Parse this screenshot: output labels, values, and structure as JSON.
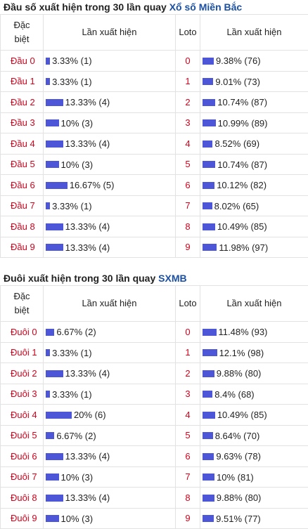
{
  "dau": {
    "title": "Đầu số xuất hiện trong 30 lần quay",
    "title_link": "Xổ số Miền Bắc",
    "headers": [
      "Đặc biệt",
      "Lần xuất hiện",
      "Loto",
      "Lần xuất hiện"
    ],
    "rows": [
      {
        "label": "Đầu 0",
        "db_text": "3.33% (1)",
        "db_pct": 3.33,
        "loto": "0",
        "loto_text": "9.38% (76)",
        "loto_pct": 9.38
      },
      {
        "label": "Đầu 1",
        "db_text": "3.33% (1)",
        "db_pct": 3.33,
        "loto": "1",
        "loto_text": "9.01% (73)",
        "loto_pct": 9.01
      },
      {
        "label": "Đầu 2",
        "db_text": "13.33% (4)",
        "db_pct": 13.33,
        "loto": "2",
        "loto_text": "10.74% (87)",
        "loto_pct": 10.74
      },
      {
        "label": "Đầu 3",
        "db_text": "10% (3)",
        "db_pct": 10,
        "loto": "3",
        "loto_text": "10.99% (89)",
        "loto_pct": 10.99
      },
      {
        "label": "Đầu 4",
        "db_text": "13.33% (4)",
        "db_pct": 13.33,
        "loto": "4",
        "loto_text": "8.52% (69)",
        "loto_pct": 8.52
      },
      {
        "label": "Đầu 5",
        "db_text": "10% (3)",
        "db_pct": 10,
        "loto": "5",
        "loto_text": "10.74% (87)",
        "loto_pct": 10.74
      },
      {
        "label": "Đầu 6",
        "db_text": "16.67% (5)",
        "db_pct": 16.67,
        "loto": "6",
        "loto_text": "10.12% (82)",
        "loto_pct": 10.12
      },
      {
        "label": "Đầu 7",
        "db_text": "3.33% (1)",
        "db_pct": 3.33,
        "loto": "7",
        "loto_text": "8.02% (65)",
        "loto_pct": 8.02
      },
      {
        "label": "Đầu 8",
        "db_text": "13.33% (4)",
        "db_pct": 13.33,
        "loto": "8",
        "loto_text": "10.49% (85)",
        "loto_pct": 10.49
      },
      {
        "label": "Đầu 9",
        "db_text": "13.33% (4)",
        "db_pct": 13.33,
        "loto": "9",
        "loto_text": "11.98% (97)",
        "loto_pct": 11.98
      }
    ]
  },
  "duoi": {
    "title": "Đuôi xuất hiện trong 30 lần quay",
    "title_link": "SXMB",
    "headers": [
      "Đặc biệt",
      "Lần xuất hiện",
      "Loto",
      "Lần xuất hiện"
    ],
    "rows": [
      {
        "label": "Đuôi 0",
        "db_text": "6.67% (2)",
        "db_pct": 6.67,
        "loto": "0",
        "loto_text": "11.48% (93)",
        "loto_pct": 11.48
      },
      {
        "label": "Đuôi 1",
        "db_text": "3.33% (1)",
        "db_pct": 3.33,
        "loto": "1",
        "loto_text": "12.1% (98)",
        "loto_pct": 12.1
      },
      {
        "label": "Đuôi 2",
        "db_text": "13.33% (4)",
        "db_pct": 13.33,
        "loto": "2",
        "loto_text": "9.88% (80)",
        "loto_pct": 9.88
      },
      {
        "label": "Đuôi 3",
        "db_text": "3.33% (1)",
        "db_pct": 3.33,
        "loto": "3",
        "loto_text": "8.4% (68)",
        "loto_pct": 8.4
      },
      {
        "label": "Đuôi 4",
        "db_text": "20% (6)",
        "db_pct": 20,
        "loto": "4",
        "loto_text": "10.49% (85)",
        "loto_pct": 10.49
      },
      {
        "label": "Đuôi 5",
        "db_text": "6.67% (2)",
        "db_pct": 6.67,
        "loto": "5",
        "loto_text": "8.64% (70)",
        "loto_pct": 8.64
      },
      {
        "label": "Đuôi 6",
        "db_text": "13.33% (4)",
        "db_pct": 13.33,
        "loto": "6",
        "loto_text": "9.63% (78)",
        "loto_pct": 9.63
      },
      {
        "label": "Đuôi 7",
        "db_text": "10% (3)",
        "db_pct": 10,
        "loto": "7",
        "loto_text": "10% (81)",
        "loto_pct": 10
      },
      {
        "label": "Đuôi 8",
        "db_text": "13.33% (4)",
        "db_pct": 13.33,
        "loto": "8",
        "loto_text": "9.88% (80)",
        "loto_pct": 9.88
      },
      {
        "label": "Đuôi 9",
        "db_text": "10% (3)",
        "db_pct": 10,
        "loto": "9",
        "loto_text": "9.51% (77)",
        "loto_pct": 9.51
      }
    ]
  },
  "colors": {
    "bar": "#4c56d6",
    "red_text": "#d0021b",
    "link": "#1a4fa3"
  }
}
